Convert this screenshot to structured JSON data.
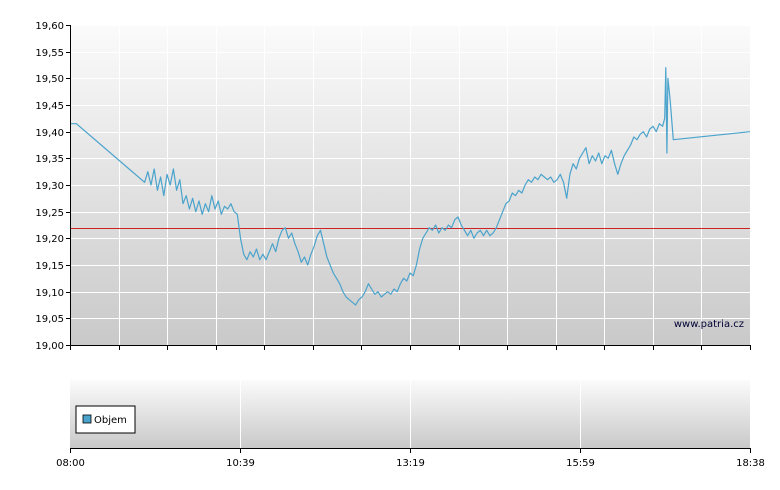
{
  "chart_data": [
    {
      "type": "line",
      "title": "",
      "xlabel": "",
      "ylabel": "",
      "ylim": [
        19.0,
        19.6
      ],
      "y_ticks": [
        "19,00",
        "19,05",
        "19,10",
        "19,15",
        "19,20",
        "19,25",
        "19,30",
        "19,35",
        "19,40",
        "19,45",
        "19,50",
        "19,55",
        "19,60"
      ],
      "x_ticks": [
        "08:00",
        "10:39",
        "13:19",
        "15:59",
        "18:38"
      ],
      "xlim_minutes": [
        480,
        1118
      ],
      "reference_line": {
        "value": 19.22,
        "color": "#cc2222"
      },
      "grid": true,
      "watermark": "www.patria.cz",
      "series": [
        {
          "color": "#4aa3cc",
          "points": [
            [
              480,
              19.415
            ],
            [
              486,
              19.415
            ],
            [
              550,
              19.305
            ],
            [
              553,
              19.325
            ],
            [
              556,
              19.3
            ],
            [
              559,
              19.33
            ],
            [
              562,
              19.29
            ],
            [
              565,
              19.315
            ],
            [
              568,
              19.28
            ],
            [
              571,
              19.32
            ],
            [
              574,
              19.3
            ],
            [
              577,
              19.33
            ],
            [
              580,
              19.29
            ],
            [
              583,
              19.31
            ],
            [
              586,
              19.265
            ],
            [
              589,
              19.28
            ],
            [
              592,
              19.255
            ],
            [
              595,
              19.275
            ],
            [
              598,
              19.25
            ],
            [
              601,
              19.27
            ],
            [
              604,
              19.245
            ],
            [
              607,
              19.265
            ],
            [
              610,
              19.25
            ],
            [
              613,
              19.28
            ],
            [
              616,
              19.255
            ],
            [
              619,
              19.27
            ],
            [
              622,
              19.245
            ],
            [
              625,
              19.26
            ],
            [
              628,
              19.255
            ],
            [
              631,
              19.265
            ],
            [
              634,
              19.25
            ],
            [
              637,
              19.245
            ],
            [
              640,
              19.2
            ],
            [
              643,
              19.17
            ],
            [
              646,
              19.16
            ],
            [
              649,
              19.175
            ],
            [
              652,
              19.165
            ],
            [
              655,
              19.18
            ],
            [
              658,
              19.16
            ],
            [
              661,
              19.17
            ],
            [
              664,
              19.16
            ],
            [
              667,
              19.175
            ],
            [
              670,
              19.19
            ],
            [
              673,
              19.175
            ],
            [
              676,
              19.2
            ],
            [
              679,
              19.215
            ],
            [
              682,
              19.22
            ],
            [
              685,
              19.2
            ],
            [
              688,
              19.21
            ],
            [
              691,
              19.19
            ],
            [
              694,
              19.175
            ],
            [
              697,
              19.155
            ],
            [
              700,
              19.165
            ],
            [
              703,
              19.15
            ],
            [
              706,
              19.17
            ],
            [
              709,
              19.185
            ],
            [
              712,
              19.205
            ],
            [
              715,
              19.215
            ],
            [
              718,
              19.19
            ],
            [
              721,
              19.165
            ],
            [
              724,
              19.15
            ],
            [
              727,
              19.135
            ],
            [
              730,
              19.125
            ],
            [
              733,
              19.115
            ],
            [
              736,
              19.1
            ],
            [
              739,
              19.09
            ],
            [
              742,
              19.085
            ],
            [
              745,
              19.08
            ],
            [
              748,
              19.075
            ],
            [
              751,
              19.085
            ],
            [
              754,
              19.09
            ],
            [
              757,
              19.1
            ],
            [
              760,
              19.115
            ],
            [
              763,
              19.105
            ],
            [
              766,
              19.095
            ],
            [
              769,
              19.1
            ],
            [
              772,
              19.09
            ],
            [
              775,
              19.095
            ],
            [
              778,
              19.1
            ],
            [
              781,
              19.095
            ],
            [
              784,
              19.105
            ],
            [
              787,
              19.1
            ],
            [
              790,
              19.115
            ],
            [
              793,
              19.125
            ],
            [
              796,
              19.12
            ],
            [
              799,
              19.135
            ],
            [
              802,
              19.13
            ],
            [
              805,
              19.15
            ],
            [
              808,
              19.18
            ],
            [
              811,
              19.2
            ],
            [
              814,
              19.21
            ],
            [
              817,
              19.22
            ],
            [
              820,
              19.215
            ],
            [
              823,
              19.225
            ],
            [
              826,
              19.21
            ],
            [
              829,
              19.22
            ],
            [
              832,
              19.215
            ],
            [
              835,
              19.225
            ],
            [
              838,
              19.22
            ],
            [
              841,
              19.235
            ],
            [
              844,
              19.24
            ],
            [
              847,
              19.225
            ],
            [
              850,
              19.215
            ],
            [
              853,
              19.205
            ],
            [
              856,
              19.215
            ],
            [
              859,
              19.2
            ],
            [
              862,
              19.21
            ],
            [
              865,
              19.215
            ],
            [
              868,
              19.205
            ],
            [
              871,
              19.215
            ],
            [
              874,
              19.205
            ],
            [
              877,
              19.21
            ],
            [
              880,
              19.22
            ],
            [
              883,
              19.235
            ],
            [
              886,
              19.25
            ],
            [
              889,
              19.265
            ],
            [
              892,
              19.27
            ],
            [
              895,
              19.285
            ],
            [
              898,
              19.28
            ],
            [
              901,
              19.29
            ],
            [
              904,
              19.285
            ],
            [
              907,
              19.3
            ],
            [
              910,
              19.31
            ],
            [
              913,
              19.305
            ],
            [
              916,
              19.315
            ],
            [
              919,
              19.31
            ],
            [
              922,
              19.32
            ],
            [
              925,
              19.315
            ],
            [
              928,
              19.31
            ],
            [
              931,
              19.315
            ],
            [
              934,
              19.305
            ],
            [
              937,
              19.31
            ],
            [
              940,
              19.32
            ],
            [
              943,
              19.305
            ],
            [
              946,
              19.275
            ],
            [
              949,
              19.32
            ],
            [
              952,
              19.34
            ],
            [
              955,
              19.33
            ],
            [
              958,
              19.35
            ],
            [
              961,
              19.36
            ],
            [
              964,
              19.37
            ],
            [
              967,
              19.34
            ],
            [
              970,
              19.355
            ],
            [
              973,
              19.345
            ],
            [
              976,
              19.36
            ],
            [
              979,
              19.34
            ],
            [
              982,
              19.355
            ],
            [
              985,
              19.35
            ],
            [
              988,
              19.365
            ],
            [
              991,
              19.34
            ],
            [
              994,
              19.32
            ],
            [
              997,
              19.34
            ],
            [
              1000,
              19.355
            ],
            [
              1003,
              19.365
            ],
            [
              1006,
              19.375
            ],
            [
              1009,
              19.39
            ],
            [
              1012,
              19.385
            ],
            [
              1015,
              19.395
            ],
            [
              1018,
              19.4
            ],
            [
              1021,
              19.39
            ],
            [
              1024,
              19.405
            ],
            [
              1027,
              19.41
            ],
            [
              1030,
              19.4
            ],
            [
              1033,
              19.415
            ],
            [
              1036,
              19.41
            ],
            [
              1038,
              19.425
            ],
            [
              1039,
              19.52
            ],
            [
              1040,
              19.36
            ],
            [
              1041,
              19.5
            ],
            [
              1043,
              19.46
            ],
            [
              1046,
              19.385
            ],
            [
              1118,
              19.4
            ]
          ]
        }
      ]
    },
    {
      "type": "bar",
      "title": "",
      "legend": [
        "Objem"
      ],
      "legend_color": "#4aa3cc",
      "legend_position": "bottom-left",
      "grid": true,
      "series": [
        {
          "name": "Objem",
          "values": []
        }
      ]
    }
  ],
  "colors": {
    "plot_bg_top": "#fbfbfb",
    "plot_bg_bottom": "#c9c9c9",
    "grid": "#ffffff",
    "line": "#4aa3cc",
    "reference": "#cc2222"
  }
}
